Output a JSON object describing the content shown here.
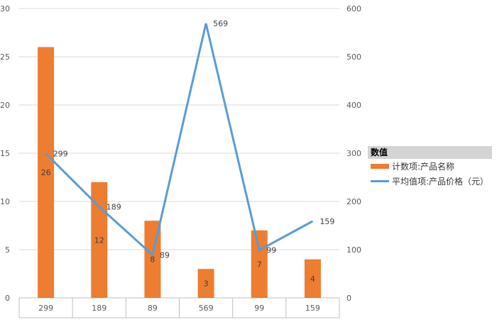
{
  "chart_data": {
    "type": "bar",
    "categories": [
      "299",
      "189",
      "89",
      "569",
      "99",
      "159"
    ],
    "series": [
      {
        "name": "计数项:产品名称",
        "type": "bar",
        "axis": "left",
        "values": [
          26,
          12,
          8,
          3,
          7,
          4
        ],
        "data_labels": [
          "26",
          "12",
          "8",
          "3",
          "7",
          "4"
        ],
        "color": "#ed7d31"
      },
      {
        "name": "平均值项:产品价格（元）",
        "type": "line",
        "axis": "right",
        "values": [
          299,
          189,
          89,
          569,
          99,
          159
        ],
        "data_labels": [
          "299",
          "189",
          "89",
          "569",
          "99",
          "159"
        ],
        "color": "#5b9bd5"
      }
    ],
    "ylim": [
      0,
      30
    ],
    "y_ticks": [
      "0",
      "5",
      "10",
      "15",
      "20",
      "25",
      "30"
    ],
    "y2lim": [
      0,
      600
    ],
    "y2_ticks": [
      "0",
      "100",
      "200",
      "300",
      "400",
      "500",
      "600"
    ],
    "legend": {
      "title": "数值",
      "position": "right"
    },
    "grid": true
  }
}
